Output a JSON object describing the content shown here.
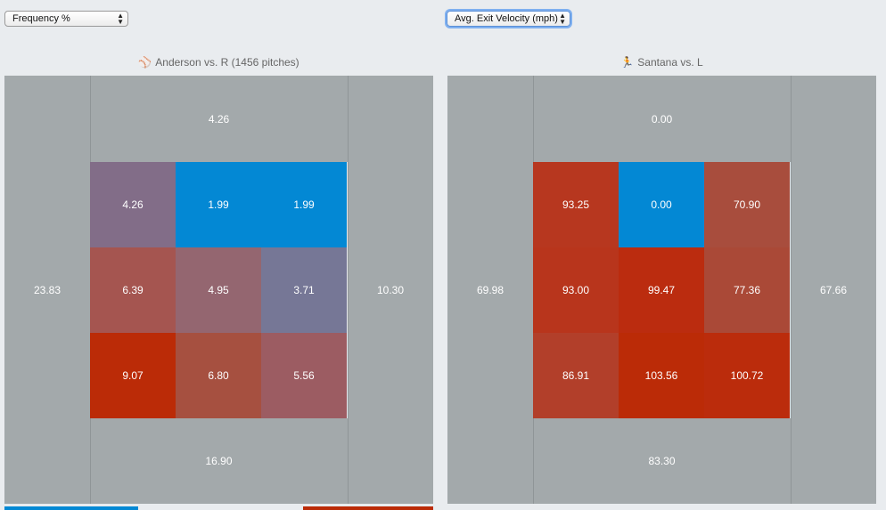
{
  "controls": {
    "left_select": "Frequency %",
    "right_select": "Avg. Exit Velocity (mph)"
  },
  "colors": {
    "outer": "#a3a9ab"
  },
  "chart_data": [
    {
      "type": "heatmap",
      "title": "Anderson vs. R (1456 pitches)",
      "icon": "baseball-icon",
      "outer": {
        "top": "4.26",
        "left": "23.83",
        "right": "10.30",
        "bottom": "16.90"
      },
      "grid": [
        [
          "4.26",
          "1.99",
          "1.99"
        ],
        [
          "6.39",
          "4.95",
          "3.71"
        ],
        [
          "9.07",
          "6.80",
          "5.56"
        ]
      ],
      "grid_colors": [
        [
          "#826d88",
          "#0388d4",
          "#0388d4"
        ],
        [
          "#a55550",
          "#946670",
          "#767796"
        ],
        [
          "#bb2b07",
          "#a65040",
          "#9c5c62"
        ]
      ]
    },
    {
      "type": "heatmap",
      "title": "Santana vs. L",
      "icon": "runner-icon",
      "outer": {
        "top": "0.00",
        "left": "69.98",
        "right": "67.66",
        "bottom": "83.30"
      },
      "grid": [
        [
          "93.25",
          "0.00",
          "70.90"
        ],
        [
          "93.00",
          "99.47",
          "77.36"
        ],
        [
          "86.91",
          "103.56",
          "100.72"
        ]
      ],
      "grid_colors": [
        [
          "#b7371f",
          "#0388d4",
          "#a84d3d"
        ],
        [
          "#b8351c",
          "#bb2c0f",
          "#aa4937"
        ],
        [
          "#b23f2a",
          "#bb2b07",
          "#bb2c0c"
        ]
      ]
    }
  ]
}
